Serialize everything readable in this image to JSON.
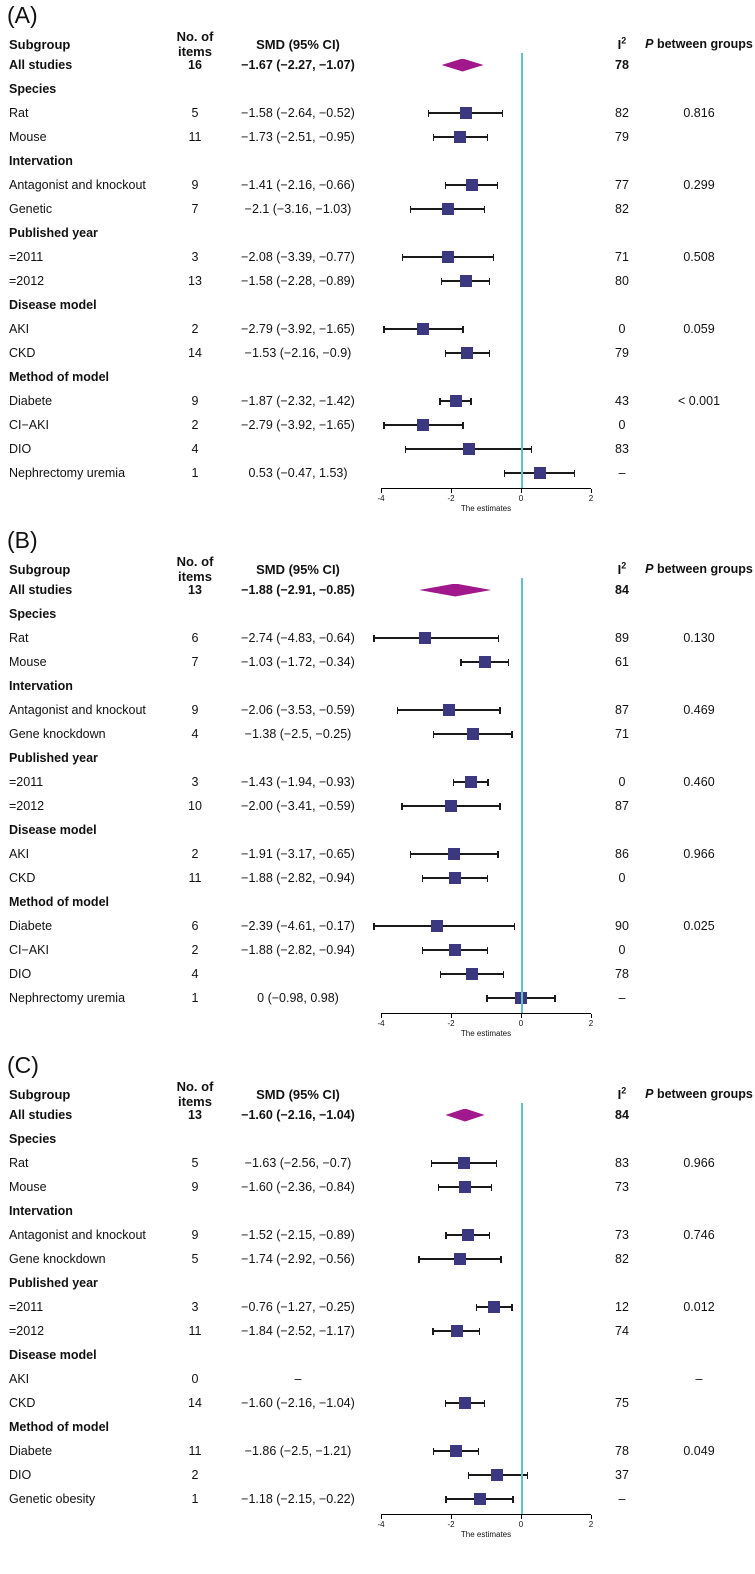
{
  "columns": {
    "subgroup": "Subgroup",
    "n": "No. of items",
    "smd": "SMD (95% CI)",
    "i2_base": "I",
    "i2_sup": "2",
    "p_italic": "P",
    "p_rest": " between groups"
  },
  "axis": {
    "min": -4,
    "max": 2,
    "ticks": [
      -4,
      -2,
      0,
      2
    ],
    "label": "The estimates"
  },
  "colors": {
    "marker": "#3b3880",
    "diamond": "#a1188c",
    "zero_line": "#62c3c6",
    "error_bar": "#1a1a1a"
  },
  "chart_data": [
    {
      "type": "forest",
      "id": "A",
      "panel_label": "(A)",
      "rows": [
        {
          "t": "summary",
          "label": "All studies",
          "n": "16",
          "ci": "−1.67 (−2.27, −1.07)",
          "est": -1.67,
          "lo": -2.27,
          "hi": -1.07,
          "i2": "78",
          "p": ""
        },
        {
          "t": "section",
          "label": "Species"
        },
        {
          "t": "study",
          "label": "Rat",
          "n": "5",
          "ci": "−1.58 (−2.64, −0.52)",
          "est": -1.58,
          "lo": -2.64,
          "hi": -0.52,
          "i2": "82",
          "p": "0.816"
        },
        {
          "t": "study",
          "label": "Mouse",
          "n": "11",
          "ci": "−1.73 (−2.51, −0.95)",
          "est": -1.73,
          "lo": -2.51,
          "hi": -0.95,
          "i2": "79",
          "p": ""
        },
        {
          "t": "section",
          "label": "Intervation"
        },
        {
          "t": "study",
          "label": "Antagonist and knockout",
          "n": "9",
          "ci": "−1.41 (−2.16, −0.66)",
          "est": -1.41,
          "lo": -2.16,
          "hi": -0.66,
          "i2": "77",
          "p": "0.299"
        },
        {
          "t": "study",
          "label": "Genetic",
          "n": "7",
          "ci": "−2.1 (−3.16, −1.03)",
          "est": -2.1,
          "lo": -3.16,
          "hi": -1.03,
          "i2": "82",
          "p": ""
        },
        {
          "t": "section",
          "label": "Published year"
        },
        {
          "t": "study",
          "label": "=2011",
          "n": "3",
          "ci": "−2.08 (−3.39, −0.77)",
          "est": -2.08,
          "lo": -3.39,
          "hi": -0.77,
          "i2": "71",
          "p": "0.508"
        },
        {
          "t": "study",
          "label": "=2012",
          "n": "13",
          "ci": "−1.58 (−2.28, −0.89)",
          "est": -1.58,
          "lo": -2.28,
          "hi": -0.89,
          "i2": "80",
          "p": ""
        },
        {
          "t": "section",
          "label": "Disease model"
        },
        {
          "t": "study",
          "label": "AKI",
          "n": "2",
          "ci": "−2.79 (−3.92, −1.65)",
          "est": -2.79,
          "lo": -3.92,
          "hi": -1.65,
          "i2": "0",
          "p": "0.059"
        },
        {
          "t": "study",
          "label": "CKD",
          "n": "14",
          "ci": "−1.53 (−2.16, −0.9)",
          "est": -1.53,
          "lo": -2.16,
          "hi": -0.9,
          "i2": "79",
          "p": ""
        },
        {
          "t": "section",
          "label": "Method of model"
        },
        {
          "t": "study",
          "label": "Diabete",
          "n": "9",
          "ci": "−1.87 (−2.32, −1.42)",
          "est": -1.87,
          "lo": -2.32,
          "hi": -1.42,
          "i2": "43",
          "p": "< 0.001"
        },
        {
          "t": "study",
          "label": "CI−AKI",
          "n": "2",
          "ci": "−2.79 (−3.92, −1.65)",
          "est": -2.79,
          "lo": -3.92,
          "hi": -1.65,
          "i2": "0",
          "p": ""
        },
        {
          "t": "study",
          "label": "DIO",
          "n": "4",
          "ci": "",
          "est": -1.5,
          "lo": -3.3,
          "hi": 0.3,
          "i2": "83",
          "p": ""
        },
        {
          "t": "study",
          "label": "Nephrectomy uremia",
          "n": "1",
          "ci": "0.53 (−0.47, 1.53)",
          "est": 0.53,
          "lo": -0.47,
          "hi": 1.53,
          "i2": "–",
          "p": ""
        }
      ]
    },
    {
      "type": "forest",
      "id": "B",
      "panel_label": "(B)",
      "rows": [
        {
          "t": "summary",
          "label": "All studies",
          "n": "13",
          "ci": "−1.88 (−2.91, −0.85)",
          "est": -1.88,
          "lo": -2.91,
          "hi": -0.85,
          "i2": "84",
          "p": ""
        },
        {
          "t": "section",
          "label": "Species"
        },
        {
          "t": "study",
          "label": "Rat",
          "n": "6",
          "ci": "−2.74 (−4.83, −0.64)",
          "est": -2.74,
          "lo": -4.83,
          "hi": -0.64,
          "i2": "89",
          "p": "0.130"
        },
        {
          "t": "study",
          "label": "Mouse",
          "n": "7",
          "ci": "−1.03 (−1.72, −0.34)",
          "est": -1.03,
          "lo": -1.72,
          "hi": -0.34,
          "i2": "61",
          "p": ""
        },
        {
          "t": "section",
          "label": "Intervation"
        },
        {
          "t": "study",
          "label": "Antagonist and knockout",
          "n": "9",
          "ci": "−2.06 (−3.53, −0.59)",
          "est": -2.06,
          "lo": -3.53,
          "hi": -0.59,
          "i2": "87",
          "p": "0.469"
        },
        {
          "t": "study",
          "label": "Gene knockdown",
          "n": "4",
          "ci": "−1.38 (−2.5, −0.25)",
          "est": -1.38,
          "lo": -2.5,
          "hi": -0.25,
          "i2": "71",
          "p": ""
        },
        {
          "t": "section",
          "label": "Published year"
        },
        {
          "t": "study",
          "label": "=2011",
          "n": "3",
          "ci": "−1.43 (−1.94, −0.93)",
          "est": -1.43,
          "lo": -1.94,
          "hi": -0.93,
          "i2": "0",
          "p": "0.460"
        },
        {
          "t": "study",
          "label": "=2012",
          "n": "10",
          "ci": "−2.00 (−3.41, −0.59)",
          "est": -2.0,
          "lo": -3.41,
          "hi": -0.59,
          "i2": "87",
          "p": ""
        },
        {
          "t": "section",
          "label": "Disease model"
        },
        {
          "t": "study",
          "label": "AKI",
          "n": "2",
          "ci": "−1.91 (−3.17, −0.65)",
          "est": -1.91,
          "lo": -3.17,
          "hi": -0.65,
          "i2": "86",
          "p": "0.966"
        },
        {
          "t": "study",
          "label": "CKD",
          "n": "11",
          "ci": "−1.88 (−2.82, −0.94)",
          "est": -1.88,
          "lo": -2.82,
          "hi": -0.94,
          "i2": "0",
          "p": ""
        },
        {
          "t": "section",
          "label": "Method of model"
        },
        {
          "t": "study",
          "label": "Diabete",
          "n": "6",
          "ci": "−2.39 (−4.61, −0.17)",
          "est": -2.39,
          "lo": -4.61,
          "hi": -0.17,
          "i2": "90",
          "p": "0.025"
        },
        {
          "t": "study",
          "label": "CI−AKI",
          "n": "2",
          "ci": "−1.88 (−2.82, −0.94)",
          "est": -1.88,
          "lo": -2.82,
          "hi": -0.94,
          "i2": "0",
          "p": ""
        },
        {
          "t": "study",
          "label": "DIO",
          "n": "4",
          "ci": "",
          "est": -1.4,
          "lo": -2.3,
          "hi": -0.5,
          "i2": "78",
          "p": ""
        },
        {
          "t": "study",
          "label": "Nephrectomy uremia",
          "n": "1",
          "ci": "0 (−0.98, 0.98)",
          "est": 0,
          "lo": -0.98,
          "hi": 0.98,
          "i2": "–",
          "p": ""
        }
      ]
    },
    {
      "type": "forest",
      "id": "C",
      "panel_label": "(C)",
      "rows": [
        {
          "t": "summary",
          "label": "All studies",
          "n": "13",
          "ci": "−1.60 (−2.16, −1.04)",
          "est": -1.6,
          "lo": -2.16,
          "hi": -1.04,
          "i2": "84",
          "p": ""
        },
        {
          "t": "section",
          "label": "Species"
        },
        {
          "t": "study",
          "label": "Rat",
          "n": "5",
          "ci": "−1.63 (−2.56, −0.7)",
          "est": -1.63,
          "lo": -2.56,
          "hi": -0.7,
          "i2": "83",
          "p": "0.966"
        },
        {
          "t": "study",
          "label": "Mouse",
          "n": "9",
          "ci": "−1.60 (−2.36, −0.84)",
          "est": -1.6,
          "lo": -2.36,
          "hi": -0.84,
          "i2": "73",
          "p": ""
        },
        {
          "t": "section",
          "label": "Intervation"
        },
        {
          "t": "study",
          "label": "Antagonist and knockout",
          "n": "9",
          "ci": "−1.52 (−2.15, −0.89)",
          "est": -1.52,
          "lo": -2.15,
          "hi": -0.89,
          "i2": "73",
          "p": "0.746"
        },
        {
          "t": "study",
          "label": "Gene knockdown",
          "n": "5",
          "ci": "−1.74 (−2.92, −0.56)",
          "est": -1.74,
          "lo": -2.92,
          "hi": -0.56,
          "i2": "82",
          "p": ""
        },
        {
          "t": "section",
          "label": "Published year"
        },
        {
          "t": "study",
          "label": "=2011",
          "n": "3",
          "ci": "−0.76 (−1.27, −0.25)",
          "est": -0.76,
          "lo": -1.27,
          "hi": -0.25,
          "i2": "12",
          "p": "0.012"
        },
        {
          "t": "study",
          "label": "=2012",
          "n": "11",
          "ci": "−1.84 (−2.52, −1.17)",
          "est": -1.84,
          "lo": -2.52,
          "hi": -1.17,
          "i2": "74",
          "p": ""
        },
        {
          "t": "section",
          "label": "Disease model"
        },
        {
          "t": "study",
          "label": "AKI",
          "n": "0",
          "ci": "–",
          "est": null,
          "lo": null,
          "hi": null,
          "i2": "",
          "p": "–"
        },
        {
          "t": "study",
          "label": "CKD",
          "n": "14",
          "ci": "−1.60 (−2.16, −1.04)",
          "est": -1.6,
          "lo": -2.16,
          "hi": -1.04,
          "i2": "75",
          "p": ""
        },
        {
          "t": "section",
          "label": "Method of model"
        },
        {
          "t": "study",
          "label": "Diabete",
          "n": "11",
          "ci": "−1.86 (−2.5, −1.21)",
          "est": -1.86,
          "lo": -2.5,
          "hi": -1.21,
          "i2": "78",
          "p": "0.049"
        },
        {
          "t": "study",
          "label": "DIO",
          "n": "2",
          "ci": "",
          "est": -0.7,
          "lo": -1.5,
          "hi": 0.2,
          "i2": "37",
          "p": ""
        },
        {
          "t": "study",
          "label": "Genetic obesity",
          "n": "1",
          "ci": "−1.18 (−2.15, −0.22)",
          "est": -1.18,
          "lo": -2.15,
          "hi": -0.22,
          "i2": "–",
          "p": ""
        }
      ]
    }
  ]
}
